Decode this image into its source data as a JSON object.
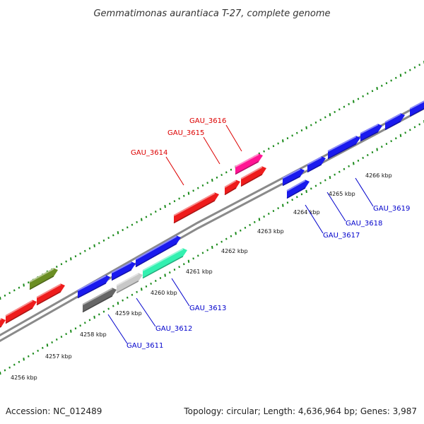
{
  "title": "Gemmatimonas aurantiaca T-27, complete genome",
  "footer": {
    "accession": "Accession: NC_012489",
    "summary": "Topology: circular; Length: 4,636,964 bp; Genes: 3,987"
  },
  "colors": {
    "backbone": "#8a8a8a",
    "tick_dots": "#1a8a1a",
    "top_label": "#dd0000",
    "bottom_label": "#0000cc",
    "leader_top": "#dd0000",
    "leader_bottom": "#0000cc"
  },
  "ticks": [
    {
      "label": "4256 kbp"
    },
    {
      "label": "4257 kbp"
    },
    {
      "label": "4258 kbp"
    },
    {
      "label": "4259 kbp"
    },
    {
      "label": "4260 kbp"
    },
    {
      "label": "4261 kbp"
    },
    {
      "label": "4262 kbp"
    },
    {
      "label": "4263 kbp"
    },
    {
      "label": "4264 kbp"
    },
    {
      "label": "4265 kbp"
    },
    {
      "label": "4266 kbp"
    }
  ],
  "genes": [
    {
      "strand": "top",
      "color": "#ee1c1c"
    },
    {
      "strand": "top",
      "color": "#ee1c1c"
    },
    {
      "strand": "top",
      "color": "#ee1c1c"
    },
    {
      "strand": "top",
      "color": "#6b8e23"
    },
    {
      "strand": "top",
      "color": "#ee1c1c",
      "label": "GAU_3614"
    },
    {
      "strand": "top",
      "color": "#ee1c1c",
      "label": "GAU_3615"
    },
    {
      "strand": "top",
      "color": "#ff1493",
      "label": "GAU_3616"
    },
    {
      "strand": "top",
      "color": "#ee1c1c"
    },
    {
      "strand": "bottom",
      "color": "#1a1aee"
    },
    {
      "strand": "bottom",
      "color": "#1a1aee"
    },
    {
      "strand": "bottom",
      "color": "#1a1aee"
    },
    {
      "strand": "bottom",
      "color": "#666666",
      "label": "GAU_3611"
    },
    {
      "strand": "bottom",
      "color": "#c8c8c8",
      "label": "GAU_3612"
    },
    {
      "strand": "bottom",
      "color": "#33f0b0",
      "label": "GAU_3613"
    },
    {
      "strand": "bottom",
      "color": "#1a1aee"
    },
    {
      "strand": "bottom",
      "color": "#1a1aee"
    },
    {
      "strand": "bottom",
      "color": "#1a1aee",
      "label": "GAU_3617"
    },
    {
      "strand": "bottom",
      "color": "#1a1aee",
      "label": "GAU_3618"
    },
    {
      "strand": "bottom",
      "color": "#1a1aee",
      "label": "GAU_3619"
    },
    {
      "strand": "bottom",
      "color": "#1a1aee"
    },
    {
      "strand": "bottom",
      "color": "#1a1aee"
    }
  ]
}
